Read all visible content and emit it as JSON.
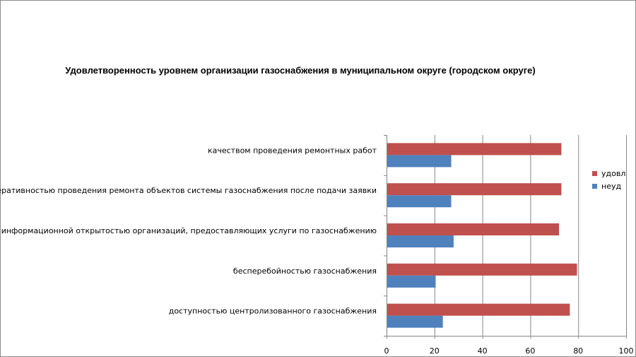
{
  "colors": {
    "udovl": "#c0504d",
    "neud": "#4f81bd",
    "grid": "#868686"
  },
  "chart_data": {
    "type": "bar",
    "orientation": "horizontal",
    "title": "Удовлетворенность уровнем организации газоснабжения в муниципальном округе (городском округе)",
    "categories": [
      "качеством проведения ремонтных работ",
      "оперативностью проведения ремонта объектов системы газоснабжения после подачи заявки",
      "информационной открытостью организаций, предоставляющих услуги по газоснабжению",
      "бесперебойностью газоснабжения",
      "доступностью центролизованного газоснабжения"
    ],
    "series": [
      {
        "name": "удовл",
        "values": [
          73,
          73,
          72,
          79.5,
          76.5
        ]
      },
      {
        "name": "неуд",
        "values": [
          27,
          27,
          28,
          20.5,
          23.5
        ]
      }
    ],
    "xlim": [
      0,
      100
    ],
    "xticks": [
      "0",
      "20",
      "40",
      "60",
      "80",
      "100"
    ],
    "grid": true,
    "legend": "right"
  }
}
